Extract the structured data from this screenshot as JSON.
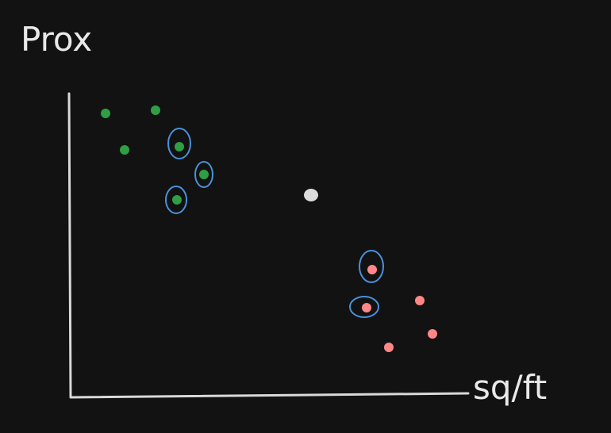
{
  "labels": {
    "y_axis": "Prox",
    "x_axis": "sq/ft"
  },
  "colors": {
    "background": "#121212",
    "axis": "#d9d9d9",
    "green_point": "#2f9e44",
    "red_point": "#ff8787",
    "query_point": "#dcdcdc",
    "highlight_ring": "#4a90d9"
  },
  "points": [
    {
      "cls": "green",
      "highlighted": false
    },
    {
      "cls": "green",
      "highlighted": false
    },
    {
      "cls": "green",
      "highlighted": false
    },
    {
      "cls": "green",
      "highlighted": true
    },
    {
      "cls": "green",
      "highlighted": true
    },
    {
      "cls": "green",
      "highlighted": true
    },
    {
      "cls": "query",
      "highlighted": false
    },
    {
      "cls": "red",
      "highlighted": true
    },
    {
      "cls": "red",
      "highlighted": true
    },
    {
      "cls": "red",
      "highlighted": false
    },
    {
      "cls": "red",
      "highlighted": false
    },
    {
      "cls": "red",
      "highlighted": false
    }
  ]
}
